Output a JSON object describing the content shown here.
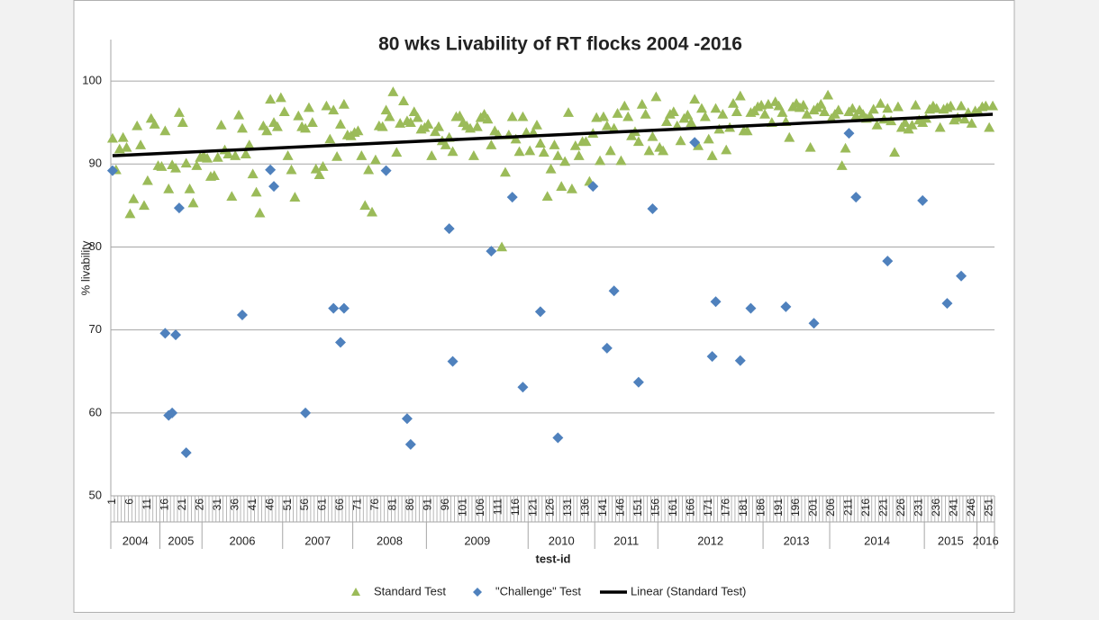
{
  "chart_data": {
    "type": "scatter",
    "title": "80 wks Livability of RT flocks 2004 -2016",
    "y_label": "% livability",
    "x_label": "test-id",
    "xlim": [
      0.5,
      252.5
    ],
    "ylim": [
      50,
      105
    ],
    "yticks": [
      50,
      60,
      70,
      80,
      90,
      100
    ],
    "xticks": [
      1,
      6,
      11,
      16,
      21,
      26,
      31,
      36,
      41,
      46,
      51,
      56,
      61,
      66,
      71,
      76,
      81,
      86,
      91,
      96,
      101,
      106,
      111,
      116,
      121,
      126,
      131,
      136,
      141,
      146,
      151,
      156,
      161,
      166,
      171,
      176,
      181,
      186,
      191,
      196,
      201,
      206,
      211,
      216,
      221,
      226,
      231,
      236,
      241,
      246,
      251
    ],
    "grid": true,
    "legend": "bottom",
    "x": [
      1,
      2,
      3,
      4,
      5,
      6,
      7,
      8,
      9,
      10,
      11,
      12,
      13,
      14,
      15,
      16,
      17,
      18,
      19,
      20,
      21,
      22,
      23,
      24,
      25,
      26,
      27,
      28,
      29,
      30,
      31,
      32,
      33,
      34,
      35,
      36,
      37,
      38,
      39,
      40,
      41,
      42,
      43,
      44,
      45,
      46,
      47,
      48,
      49,
      50,
      51,
      52,
      53,
      54,
      55,
      56,
      57,
      58,
      59,
      60,
      61,
      62,
      63,
      64,
      65,
      66,
      67,
      68,
      69,
      70,
      71,
      72,
      73,
      74,
      75,
      76,
      77,
      78,
      79,
      80,
      81,
      82,
      83,
      84,
      85,
      86,
      87,
      88,
      89,
      90,
      91,
      92,
      93,
      94,
      95,
      96,
      97,
      98,
      99,
      100,
      101,
      102,
      103,
      104,
      105,
      106,
      107,
      108,
      109,
      110,
      111,
      112,
      113,
      114,
      115,
      116,
      117,
      118,
      119,
      120,
      121,
      122,
      123,
      124,
      125,
      126,
      127,
      128,
      129,
      130,
      131,
      132,
      133,
      134,
      135,
      136,
      137,
      138,
      139,
      140,
      141,
      142,
      143,
      144,
      145,
      146,
      147,
      148,
      149,
      150,
      151,
      152,
      153,
      154,
      155,
      156,
      157,
      158,
      159,
      160,
      161,
      162,
      163,
      164,
      165,
      166,
      167,
      168,
      169,
      170,
      171,
      172,
      173,
      174,
      175,
      176,
      177,
      178,
      179,
      180,
      181,
      182,
      183,
      184,
      185,
      186,
      187,
      188,
      189,
      190,
      191,
      192,
      193,
      194,
      195,
      196,
      197,
      198,
      199,
      200,
      201,
      202,
      203,
      204,
      205,
      206,
      207,
      208,
      209,
      210,
      211,
      212,
      213,
      214,
      215,
      216,
      217,
      218,
      219,
      220,
      221,
      222,
      223,
      224,
      225,
      226,
      227,
      228,
      229,
      230,
      231,
      232,
      233,
      234,
      235,
      236,
      237,
      238,
      239,
      240,
      241,
      242,
      243,
      244,
      245,
      246,
      247,
      248,
      249,
      250,
      251,
      252
    ],
    "year_groups": [
      {
        "label": "2004",
        "start": 0.5,
        "end": 14.5
      },
      {
        "label": "2005",
        "start": 14.5,
        "end": 26.5
      },
      {
        "label": "2006",
        "start": 26.5,
        "end": 49.5
      },
      {
        "label": "2007",
        "start": 49.5,
        "end": 69.5
      },
      {
        "label": "2008",
        "start": 69.5,
        "end": 90.5
      },
      {
        "label": "2009",
        "start": 90.5,
        "end": 119.5
      },
      {
        "label": "2010",
        "start": 119.5,
        "end": 138.5
      },
      {
        "label": "2011",
        "start": 138.5,
        "end": 156.5
      },
      {
        "label": "2012",
        "start": 156.5,
        "end": 186.5
      },
      {
        "label": "2013",
        "start": 186.5,
        "end": 205.5
      },
      {
        "label": "2014",
        "start": 205.5,
        "end": 232.5
      },
      {
        "label": "2015",
        "start": 232.5,
        "end": 247.5
      },
      {
        "label": "2016",
        "start": 247.5,
        "end": 252.5
      }
    ],
    "series": [
      {
        "name": "Standard Test",
        "color": "#9bbb59",
        "marker": "triangle",
        "values": [
          93.1,
          89.3,
          91.8,
          93.2,
          92.0,
          84.0,
          85.8,
          94.6,
          92.3,
          85.0,
          88.0,
          95.5,
          94.8,
          89.8,
          89.7,
          94.0,
          87.0,
          89.9,
          89.5,
          96.2,
          95.0,
          90.1,
          87.0,
          85.3,
          89.8,
          90.8,
          91.0,
          90.7,
          88.5,
          88.6,
          90.8,
          94.7,
          91.7,
          91.2,
          86.1,
          91.0,
          95.9,
          94.3,
          91.2,
          92.3,
          88.8,
          86.6,
          84.1,
          94.6,
          94.0,
          97.8,
          95.0,
          94.5,
          98.0,
          96.3,
          91.0,
          89.3,
          86.0,
          95.8,
          94.5,
          94.3,
          96.8,
          95.0,
          89.4,
          88.7,
          89.7,
          97.0,
          93.0,
          96.5,
          90.9,
          94.8,
          97.2,
          93.5,
          93.4,
          93.8,
          94.0,
          91.0,
          85.0,
          89.3,
          84.2,
          90.5,
          94.6,
          94.5,
          96.5,
          95.7,
          98.7,
          91.4,
          94.9,
          97.6,
          95.2,
          95.0,
          96.3,
          95.6,
          94.2,
          94.4,
          94.8,
          91.0,
          93.9,
          94.5,
          92.8,
          92.3,
          93.2,
          91.5,
          95.7,
          95.8,
          95.0,
          94.6,
          94.3,
          91.0,
          94.5,
          95.6,
          96.0,
          95.4,
          92.3,
          94.0,
          93.5,
          80.0,
          89.0,
          93.5,
          95.7,
          93.0,
          91.5,
          95.7,
          93.8,
          91.6,
          93.8,
          94.7,
          92.5,
          91.4,
          86.1,
          89.4,
          92.3,
          91.0,
          87.3,
          90.3,
          96.2,
          87.0,
          92.2,
          91.0,
          92.7,
          92.7,
          87.9,
          93.7,
          95.6,
          90.4,
          95.7,
          94.6,
          91.6,
          94.3,
          96.1,
          90.4,
          97.0,
          95.7,
          93.4,
          93.9,
          92.7,
          97.2,
          96.0,
          91.6,
          93.3,
          98.1,
          92.0,
          91.6,
          95.1,
          96.0,
          96.3,
          94.6,
          92.8,
          95.5,
          95.9,
          95.0,
          97.8,
          92.2,
          96.7,
          95.7,
          93.0,
          91.0,
          96.7,
          94.2,
          96.0,
          91.7,
          94.4,
          97.3,
          96.3,
          98.2,
          94.0,
          94.0,
          96.2,
          96.4,
          96.9,
          97.1,
          96.0,
          97.2,
          95.0,
          97.5,
          97.0,
          96.2,
          95.1,
          93.2,
          96.9,
          97.3,
          96.8,
          97.1,
          96.0,
          92.0,
          96.5,
          96.8,
          97.2,
          96.3,
          98.3,
          95.5,
          96.0,
          96.5,
          89.8,
          91.9,
          96.3,
          96.7,
          95.8,
          96.5,
          96.0,
          95.5,
          95.8,
          96.6,
          94.7,
          97.3,
          95.4,
          96.7,
          95.2,
          91.4,
          96.9,
          94.4,
          95.0,
          94.2,
          94.7,
          97.1,
          95.3,
          95.0,
          95.5,
          96.6,
          97.0,
          96.7,
          94.4,
          96.6,
          96.8,
          97.0,
          95.3,
          95.6,
          97.0,
          95.4,
          96.2,
          94.9,
          96.4,
          96.3,
          96.9,
          97.0,
          94.4,
          97.0
        ]
      },
      {
        "name": "\"Challenge\" Test",
        "color": "#4f81bd",
        "marker": "diamond",
        "x": [
          1,
          16,
          17,
          18,
          19,
          20,
          22,
          38,
          46,
          47,
          56,
          64,
          66,
          67,
          79,
          85,
          86,
          97,
          98,
          109,
          115,
          118,
          123,
          128,
          138,
          142,
          144,
          151,
          155,
          167,
          172,
          173,
          180,
          183,
          193,
          201,
          211,
          213,
          222,
          232,
          239,
          243
        ],
        "values": [
          89.2,
          69.6,
          59.7,
          60.0,
          69.4,
          84.7,
          55.2,
          71.8,
          89.3,
          87.3,
          60.0,
          72.6,
          68.5,
          72.6,
          89.2,
          59.3,
          56.2,
          82.2,
          66.2,
          79.5,
          86.0,
          63.1,
          72.2,
          57.0,
          87.3,
          67.8,
          74.7,
          63.7,
          84.6,
          92.6,
          66.8,
          73.4,
          66.3,
          72.6,
          72.8,
          70.8,
          93.7,
          86.0,
          78.3,
          85.6,
          73.2,
          76.5
        ]
      },
      {
        "name": "Linear (Standard Test)",
        "color": "#000000",
        "marker": "line",
        "x": [
          1,
          252
        ],
        "values": [
          91.0,
          96.0
        ]
      }
    ]
  }
}
